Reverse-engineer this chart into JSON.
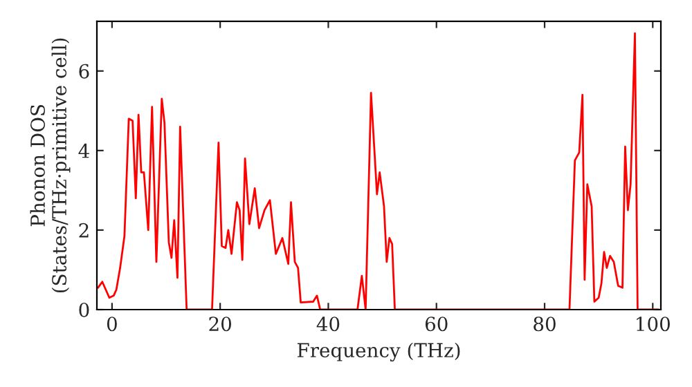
{
  "chart_data": {
    "type": "line",
    "xlabel": "Frequency (THz)",
    "ylabel": "Phonon DOS\n(States/THz·primitive cell)",
    "x": [
      -2.6,
      -1.8,
      -0.5,
      0.3,
      0.8,
      1.5,
      2.3,
      3.1,
      3.8,
      4.4,
      4.9,
      5.4,
      5.9,
      6.7,
      7.4,
      8.2,
      9.2,
      9.7,
      10.5,
      11.0,
      11.5,
      12.1,
      12.6,
      13.8,
      18.5,
      19.7,
      20.3,
      21.0,
      21.5,
      22.1,
      23.1,
      23.6,
      24.1,
      24.6,
      25.4,
      26.4,
      27.2,
      28.2,
      29.2,
      30.3,
      31.5,
      32.6,
      33.1,
      33.8,
      34.4,
      34.9,
      37.2,
      37.9,
      38.5,
      45.4,
      46.2,
      46.9,
      47.9,
      49.0,
      49.5,
      50.3,
      50.8,
      51.3,
      51.8,
      52.3,
      84.6,
      85.6,
      86.4,
      87.0,
      87.4,
      87.9,
      88.7,
      89.2,
      90.0,
      90.5,
      91.0,
      91.5,
      92.1,
      92.8,
      93.6,
      94.4,
      94.9,
      95.4,
      95.9,
      96.7,
      97.2,
      101.0
    ],
    "series": [
      {
        "color": "#ff0000",
        "values": [
          0.55,
          0.7,
          0.3,
          0.35,
          0.5,
          1.05,
          1.85,
          4.8,
          4.75,
          2.8,
          4.9,
          3.45,
          3.45,
          2.0,
          5.1,
          1.2,
          5.3,
          4.7,
          1.7,
          1.3,
          2.25,
          0.8,
          4.6,
          0,
          0,
          4.2,
          1.6,
          1.55,
          2.0,
          1.4,
          2.7,
          2.5,
          1.25,
          3.8,
          2.15,
          3.05,
          2.05,
          2.5,
          2.75,
          1.4,
          1.8,
          1.15,
          2.7,
          1.2,
          1.05,
          0.18,
          0.2,
          0.35,
          0,
          0,
          0.85,
          0,
          5.45,
          2.9,
          3.45,
          2.6,
          1.2,
          1.8,
          1.65,
          0,
          0,
          3.75,
          3.95,
          5.4,
          0.75,
          3.15,
          2.6,
          0.2,
          0.3,
          0.65,
          1.45,
          1.05,
          1.35,
          1.2,
          0.6,
          0.55,
          4.1,
          2.5,
          3.15,
          6.95,
          0,
          0
        ]
      }
    ],
    "xlim": [
      -2.8,
      101.5
    ],
    "ylim": [
      0,
      7.25
    ],
    "xticks": [
      0,
      20,
      40,
      60,
      80,
      100
    ],
    "yticks": [
      0,
      2,
      4,
      6
    ],
    "grid": false,
    "marker": "none",
    "line_style": "solid"
  }
}
